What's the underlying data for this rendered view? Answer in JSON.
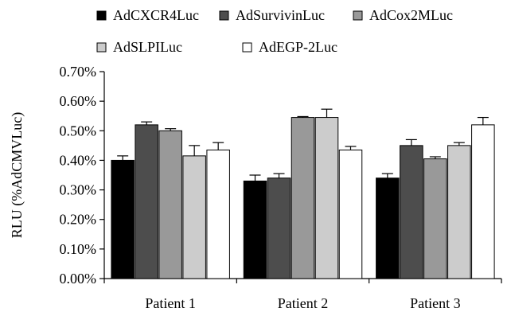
{
  "chart_data": {
    "type": "bar",
    "categories": [
      "Patient 1",
      "Patient 2",
      "Patient 3"
    ],
    "series": [
      {
        "name": "AdCXCR4Luc",
        "color": "#000000",
        "values": [
          0.4,
          0.33,
          0.34
        ],
        "errors": [
          0.015,
          0.02,
          0.015
        ]
      },
      {
        "name": "AdSurvivinLuc",
        "color": "#4d4d4d",
        "values": [
          0.52,
          0.34,
          0.45
        ],
        "errors": [
          0.01,
          0.015,
          0.02
        ]
      },
      {
        "name": "AdCox2MLuc",
        "color": "#999999",
        "values": [
          0.5,
          0.545,
          0.405
        ],
        "errors": [
          0.007,
          0.003,
          0.007
        ]
      },
      {
        "name": "AdSLPILuc",
        "color": "#cccccc",
        "values": [
          0.415,
          0.545,
          0.45
        ],
        "errors": [
          0.035,
          0.028,
          0.01
        ]
      },
      {
        "name": "AdEGP-2Luc",
        "color": "#ffffff",
        "values": [
          0.435,
          0.435,
          0.52
        ],
        "errors": [
          0.025,
          0.012,
          0.025
        ]
      }
    ],
    "ylabel": "RLU (%AdCMVLuc)",
    "ylim": [
      0,
      0.7
    ],
    "yticks": [
      "0.00%",
      "0.10%",
      "0.20%",
      "0.30%",
      "0.40%",
      "0.50%",
      "0.60%",
      "0.70%"
    ],
    "grid": false,
    "legend": "top"
  }
}
